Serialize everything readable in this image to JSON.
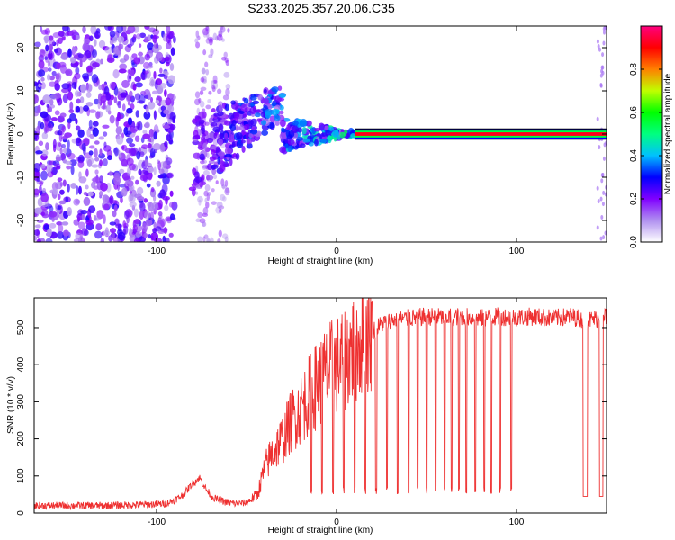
{
  "title": "S233.2025.357.20.06.C35",
  "chart_data": [
    {
      "type": "heatmap",
      "xlabel": "Height of straight line (km)",
      "ylabel": "Frequency (Hz)",
      "xlim": [
        -168,
        150
      ],
      "ylim": [
        -25,
        25
      ],
      "xticks": [
        -100,
        0,
        100
      ],
      "xtick_labels": [
        "-100",
        "0",
        "100"
      ],
      "yticks": [
        -20,
        -10,
        0,
        10,
        20
      ],
      "ytick_labels": [
        "-20",
        "-10",
        "0",
        "10",
        "20"
      ],
      "tone_frequency_hz": 0,
      "tone_start_km": 10,
      "colorbar": {
        "label": "Normalized spectral amplitude",
        "range": [
          0,
          1
        ],
        "ticks": [
          0.0,
          0.2,
          0.4,
          0.6,
          0.8
        ],
        "tick_labels": [
          "0.0",
          "0.2",
          "0.4",
          "0.6",
          "0.8"
        ],
        "colors": [
          "#ffffff",
          "#b090f0",
          "#8000ff",
          "#0000ff",
          "#00c0ff",
          "#00ff80",
          "#00ff00",
          "#c0ff00",
          "#ff8000",
          "#ff0000",
          "#ff0080"
        ]
      },
      "noise_region_km": [
        -168,
        -90
      ],
      "transition_region_km": [
        -90,
        10
      ]
    },
    {
      "type": "line",
      "xlabel": "Height of straight line (km)",
      "ylabel": "SNR (10 * v/v)",
      "xlim": [
        -168,
        150
      ],
      "ylim": [
        0,
        580
      ],
      "xticks": [
        -100,
        0,
        100
      ],
      "xtick_labels": [
        "-100",
        "0",
        "100"
      ],
      "yticks": [
        0,
        100,
        200,
        300,
        400,
        500
      ],
      "ytick_labels": [
        "0",
        "100",
        "200",
        "300",
        "400",
        "500"
      ],
      "color": "#ee3030",
      "series": [
        {
          "name": "SNR",
          "x": [
            -168,
            -150,
            -130,
            -110,
            -95,
            -90,
            -85,
            -80,
            -76,
            -72,
            -68,
            -62,
            -56,
            -50,
            -44,
            -40,
            -36,
            -30,
            -25,
            -20,
            -15,
            -10,
            -5,
            0,
            5,
            10,
            15,
            20,
            25,
            30,
            40,
            50,
            60,
            70,
            80,
            90,
            100,
            110,
            120,
            130,
            140,
            150
          ],
          "y": [
            20,
            20,
            20,
            22,
            25,
            35,
            50,
            80,
            95,
            60,
            40,
            30,
            25,
            28,
            50,
            120,
            160,
            200,
            250,
            280,
            320,
            350,
            380,
            400,
            420,
            450,
            470,
            490,
            510,
            520,
            525,
            530,
            528,
            530,
            525,
            530,
            528,
            530,
            525,
            530,
            520,
            530
          ]
        }
      ],
      "dropouts_km": [
        -14,
        -8,
        -2,
        4,
        10,
        16,
        22,
        28,
        34,
        40,
        45,
        50,
        55,
        60,
        64,
        68,
        72,
        77,
        82,
        86,
        91,
        97,
        138,
        147
      ]
    }
  ]
}
